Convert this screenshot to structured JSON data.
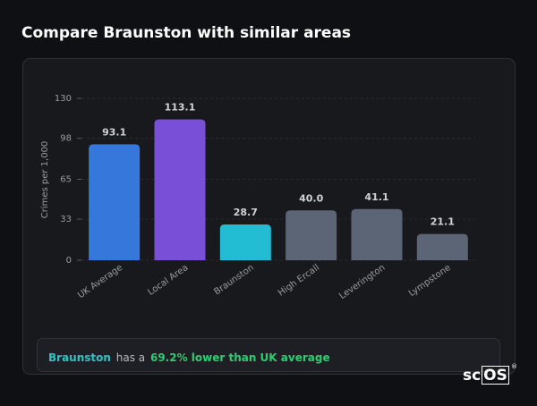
{
  "chart_data": {
    "type": "bar",
    "title": "Compare Braunston with similar areas",
    "ylabel": "Crimes per 1,000",
    "categories": [
      "UK Average",
      "Local Area",
      "Braunston",
      "High Ercall",
      "Leverington",
      "Lympstone"
    ],
    "values": [
      93.1,
      113.1,
      28.7,
      40.0,
      41.1,
      21.1
    ],
    "value_labels": [
      "93.1",
      "113.1",
      "28.7",
      "40.0",
      "41.1",
      "21.1"
    ],
    "colors": [
      "#3677dc",
      "#7a4fd8",
      "#22bdd3",
      "#5b6576",
      "#5b6576",
      "#5b6576"
    ],
    "ylim": [
      0,
      130
    ],
    "yticks": [
      0,
      33,
      65,
      98,
      130
    ],
    "grid": true
  },
  "summary": {
    "area": "Braunston",
    "connector": "has a",
    "comparison": "69.2% lower than UK average"
  },
  "logo": {
    "prefix": "sc",
    "box": "OS",
    "mark": "®"
  }
}
